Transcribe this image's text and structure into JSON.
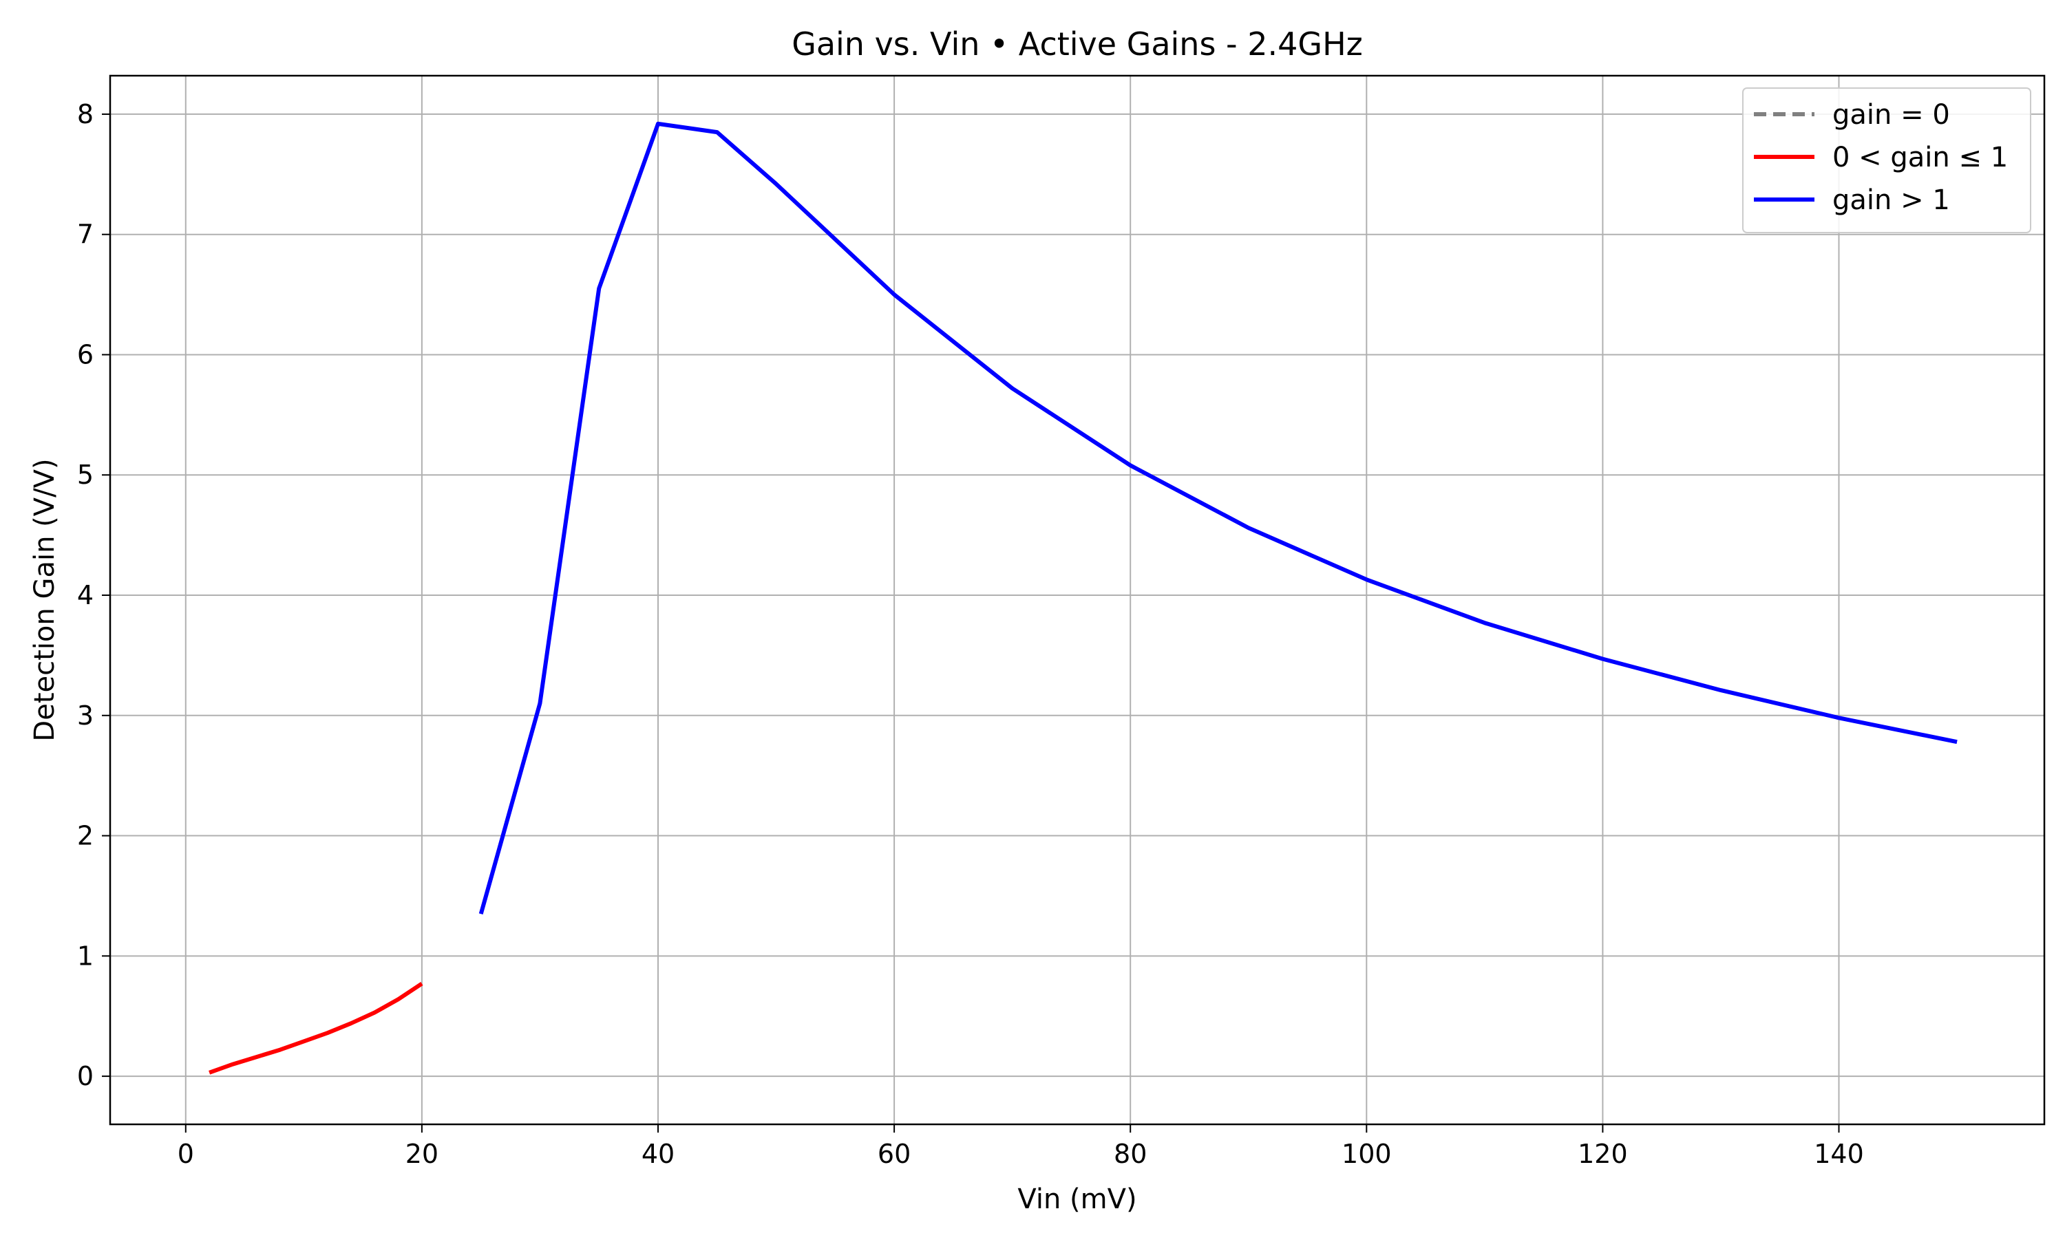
{
  "chart_data": {
    "type": "line",
    "title": "Gain vs. Vin • Active Gains - 2.4GHz",
    "xlabel": "Vin (mV)",
    "ylabel": "Detection Gain (V/V)",
    "xlim": [
      -6.4,
      157.4
    ],
    "ylim": [
      -0.4,
      8.32
    ],
    "xticks": [
      0,
      20,
      40,
      60,
      80,
      100,
      120,
      140
    ],
    "yticks": [
      0,
      1,
      2,
      3,
      4,
      5,
      6,
      7,
      8
    ],
    "grid": true,
    "legend_position": "top-right",
    "series": [
      {
        "name": "gain = 0",
        "color": "#808080",
        "style": "dashed",
        "x": [],
        "y": []
      },
      {
        "name": "0 < gain ≤ 1",
        "color": "#ff0000",
        "style": "solid",
        "x": [
          2,
          4,
          6,
          8,
          10,
          12,
          14,
          16,
          18,
          20
        ],
        "y": [
          0.03,
          0.1,
          0.16,
          0.22,
          0.29,
          0.36,
          0.44,
          0.53,
          0.64,
          0.77
        ]
      },
      {
        "name": "gain > 1",
        "color": "#0000ff",
        "style": "solid",
        "x": [
          25,
          30,
          35,
          40,
          45,
          50,
          60,
          70,
          80,
          90,
          100,
          110,
          120,
          130,
          140,
          150
        ],
        "y": [
          1.35,
          3.1,
          6.55,
          7.92,
          7.85,
          7.42,
          6.5,
          5.72,
          5.08,
          4.56,
          4.13,
          3.77,
          3.47,
          3.21,
          2.98,
          2.78
        ]
      }
    ]
  }
}
